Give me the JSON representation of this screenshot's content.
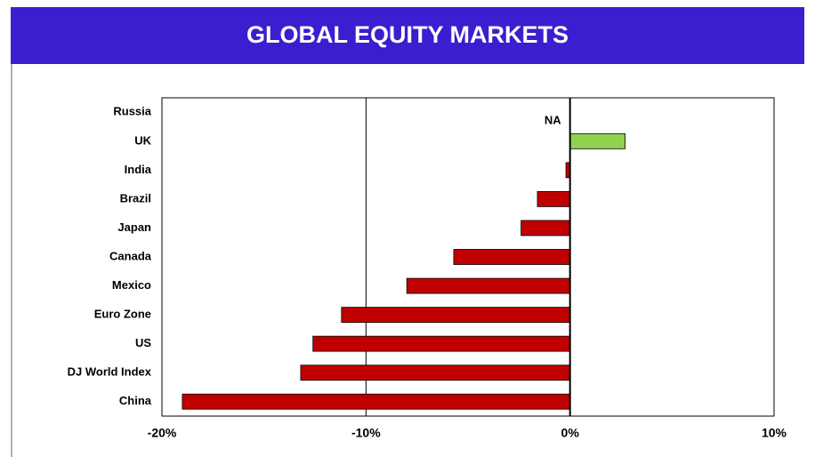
{
  "chart_data": {
    "type": "barh",
    "title": "GLOBAL EQUITY MARKETS",
    "categories": [
      "Russia",
      "UK",
      "India",
      "Brazil",
      "Japan",
      "Canada",
      "Mexico",
      "Euro Zone",
      "US",
      "DJ World Index",
      "China"
    ],
    "values": [
      null,
      2.7,
      -0.2,
      -1.6,
      -2.4,
      -5.7,
      -8.0,
      -11.2,
      -12.6,
      -13.2,
      -19.0
    ],
    "value_labels": [
      "NA",
      null,
      null,
      null,
      null,
      null,
      null,
      null,
      null,
      null,
      null
    ],
    "color_positive": "#92d050",
    "color_negative": "#c00000",
    "xlim": [
      -20,
      10
    ],
    "xticks": [
      {
        "value": -20,
        "label": "-20%"
      },
      {
        "value": -10,
        "label": "-10%"
      },
      {
        "value": 0,
        "label": "0%"
      },
      {
        "value": 10,
        "label": "10%"
      }
    ],
    "grid": true
  }
}
